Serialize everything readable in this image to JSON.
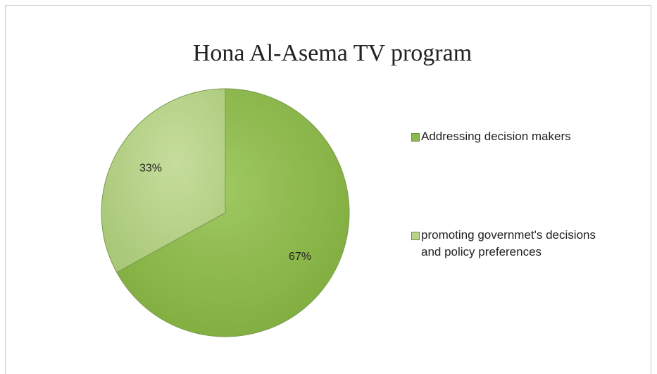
{
  "chart_data": {
    "type": "pie",
    "title": "Hona Al-Asema  TV program",
    "categories": [
      "Addressing decision makers",
      "promoting governmet's decisions and policy preferences"
    ],
    "values": [
      67,
      33
    ],
    "value_labels": [
      "67%",
      "33%"
    ],
    "colors": [
      "#8cb84d",
      "#b9d38a"
    ],
    "legend": "right"
  }
}
